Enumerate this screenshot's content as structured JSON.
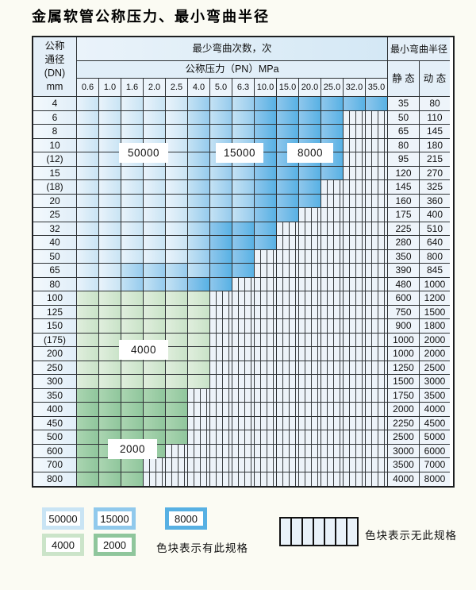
{
  "title": "金属软管公称压力、最小弯曲半径",
  "table": {
    "header": {
      "dn_lines": [
        "公称",
        "通径",
        "(DN)",
        "mm"
      ],
      "min_cycles": "最少弯曲次数，次",
      "pressure_title": "公称压力（PN）MPa",
      "pressures": [
        "0.6",
        "1.0",
        "1.6",
        "2.0",
        "2.5",
        "4.0",
        "5.0",
        "6.3",
        "10.0",
        "15.0",
        "20.0",
        "25.0",
        "32.0",
        "35.0"
      ],
      "min_radius": "最小弯曲半径",
      "static_label": "静 态",
      "dynamic_label": "动 态"
    },
    "rows": [
      {
        "dn": "4",
        "static": "35",
        "dynamic": "80",
        "z50": 5,
        "z15": 8,
        "z8": 14
      },
      {
        "dn": "6",
        "static": "50",
        "dynamic": "110",
        "z50": 5,
        "z15": 8,
        "z8": 12
      },
      {
        "dn": "8",
        "static": "65",
        "dynamic": "145",
        "z50": 5,
        "z15": 8,
        "z8": 12
      },
      {
        "dn": "10",
        "static": "80",
        "dynamic": "180",
        "z50": 5,
        "z15": 8,
        "z8": 12
      },
      {
        "dn": "(12)",
        "static": "95",
        "dynamic": "215",
        "z50": 5,
        "z15": 8,
        "z8": 12
      },
      {
        "dn": "15",
        "static": "120",
        "dynamic": "270",
        "z50": 5,
        "z15": 8,
        "z8": 12
      },
      {
        "dn": "(18)",
        "static": "145",
        "dynamic": "325",
        "z50": 5,
        "z15": 8,
        "z8": 11
      },
      {
        "dn": "20",
        "static": "160",
        "dynamic": "360",
        "z50": 5,
        "z15": 8,
        "z8": 11
      },
      {
        "dn": "25",
        "static": "175",
        "dynamic": "400",
        "z50": 5,
        "z15": 8,
        "z8": 10
      },
      {
        "dn": "32",
        "static": "225",
        "dynamic": "510",
        "z50": 5,
        "z15": 6,
        "z8": 9
      },
      {
        "dn": "40",
        "static": "280",
        "dynamic": "640",
        "z50": 5,
        "z15": 6,
        "z8": 9
      },
      {
        "dn": "50",
        "static": "350",
        "dynamic": "800",
        "z50": 5,
        "z15": 6,
        "z8": 8
      },
      {
        "dn": "65",
        "static": "390",
        "dynamic": "845",
        "z50": 2,
        "z15": 6,
        "z8": 8
      },
      {
        "dn": "80",
        "static": "480",
        "dynamic": "1000",
        "z50": 2,
        "z15": 5,
        "z8": 7
      },
      {
        "dn": "100",
        "static": "600",
        "dynamic": "1200",
        "z4": 6
      },
      {
        "dn": "125",
        "static": "750",
        "dynamic": "1500",
        "z4": 6
      },
      {
        "dn": "150",
        "static": "900",
        "dynamic": "1800",
        "z4": 6
      },
      {
        "dn": "(175)",
        "static": "1000",
        "dynamic": "2000",
        "z4": 6
      },
      {
        "dn": "200",
        "static": "1000",
        "dynamic": "2000",
        "z4": 6
      },
      {
        "dn": "250",
        "static": "1250",
        "dynamic": "2500",
        "z4": 6
      },
      {
        "dn": "300",
        "static": "1500",
        "dynamic": "3000",
        "z4": 6
      },
      {
        "dn": "350",
        "static": "1750",
        "dynamic": "3500",
        "z2": 5
      },
      {
        "dn": "400",
        "static": "2000",
        "dynamic": "4000",
        "z2": 5
      },
      {
        "dn": "450",
        "static": "2250",
        "dynamic": "4500",
        "z2": 5
      },
      {
        "dn": "500",
        "static": "2500",
        "dynamic": "5000",
        "z2": 5
      },
      {
        "dn": "600",
        "static": "3000",
        "dynamic": "6000",
        "z2": 4
      },
      {
        "dn": "700",
        "static": "3500",
        "dynamic": "7000",
        "z2": 3
      },
      {
        "dn": "800",
        "static": "4000",
        "dynamic": "8000",
        "z2": 3
      }
    ]
  },
  "zone_labels": {
    "b50": "50000",
    "b15": "15000",
    "b8": "8000",
    "g4": "4000",
    "g2": "2000"
  },
  "legend": {
    "swatches": [
      {
        "text": "50000"
      },
      {
        "text": "15000"
      },
      {
        "text": "8000"
      },
      {
        "text": "4000"
      },
      {
        "text": "2000"
      }
    ],
    "has_spec_note": "色块表示有此规格",
    "no_spec_note": "色块表示无此规格"
  },
  "colors": {
    "zone_50000": "#c9e4f4",
    "zone_15000": "#90c9ec",
    "zone_8000": "#57b0e3",
    "zone_4000": "#cbe4c9",
    "zone_2000": "#8fc69c",
    "no_spec_fill": "#edf3f9",
    "grid_line": "#2e3235",
    "page_background": "#fbfbf3"
  }
}
